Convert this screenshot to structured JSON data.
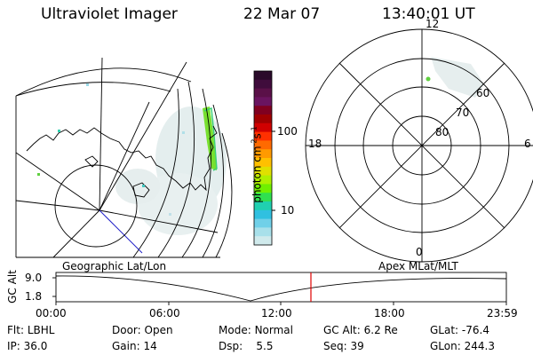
{
  "header": {
    "instrument": "Ultraviolet Imager",
    "date": "22 Mar 07",
    "time": "13:40:01 UT"
  },
  "colorbar": {
    "unit_label": "photon cm",
    "unit_exp1": "-2",
    "unit_s": "s",
    "unit_exp2": "-1",
    "ticks": [
      "100",
      "10"
    ],
    "colors": [
      "#2a0a2a",
      "#400c3c",
      "#5a1048",
      "#6a1460",
      "#800020",
      "#a00000",
      "#d00000",
      "#ff3000",
      "#ff6a00",
      "#ff9a00",
      "#ffc000",
      "#e0e000",
      "#b0f000",
      "#70f000",
      "#30e050",
      "#20d0b0",
      "#30c0e0",
      "#70d0e8",
      "#a8e0ea",
      "#d0eaec"
    ]
  },
  "geo_map": {
    "title": "Geographic Lat/Lon"
  },
  "polar_plot": {
    "title": "Apex MLat/MLT",
    "mlt_labels": {
      "top": "12",
      "left": "18",
      "right": "6",
      "bottom": "0"
    },
    "lat_labels": [
      "60",
      "70",
      "80"
    ]
  },
  "altitude_timeline": {
    "ylabel": "GC Alt",
    "yticks": [
      "9.0",
      "1.8"
    ],
    "xticks": [
      "00:00",
      "06:00",
      "12:00",
      "18:00",
      "23:59"
    ],
    "marker_time": "13:40"
  },
  "status": {
    "row1": [
      {
        "label": "Flt:",
        "value": "LBHL"
      },
      {
        "label": "Door:",
        "value": "Open"
      },
      {
        "label": "Mode:",
        "value": "Normal"
      },
      {
        "label": "GC Alt:",
        "value": "6.2 Re"
      },
      {
        "label": "GLat:",
        "value": "-76.4"
      }
    ],
    "row2": [
      {
        "label": "IP:",
        "value": "36.0"
      },
      {
        "label": "Gain:",
        "value": "14"
      },
      {
        "label": "Dsp:",
        "value": "5.5"
      },
      {
        "label": "Seq:",
        "value": "39"
      },
      {
        "label": "GLon:",
        "value": "244.3"
      }
    ]
  }
}
